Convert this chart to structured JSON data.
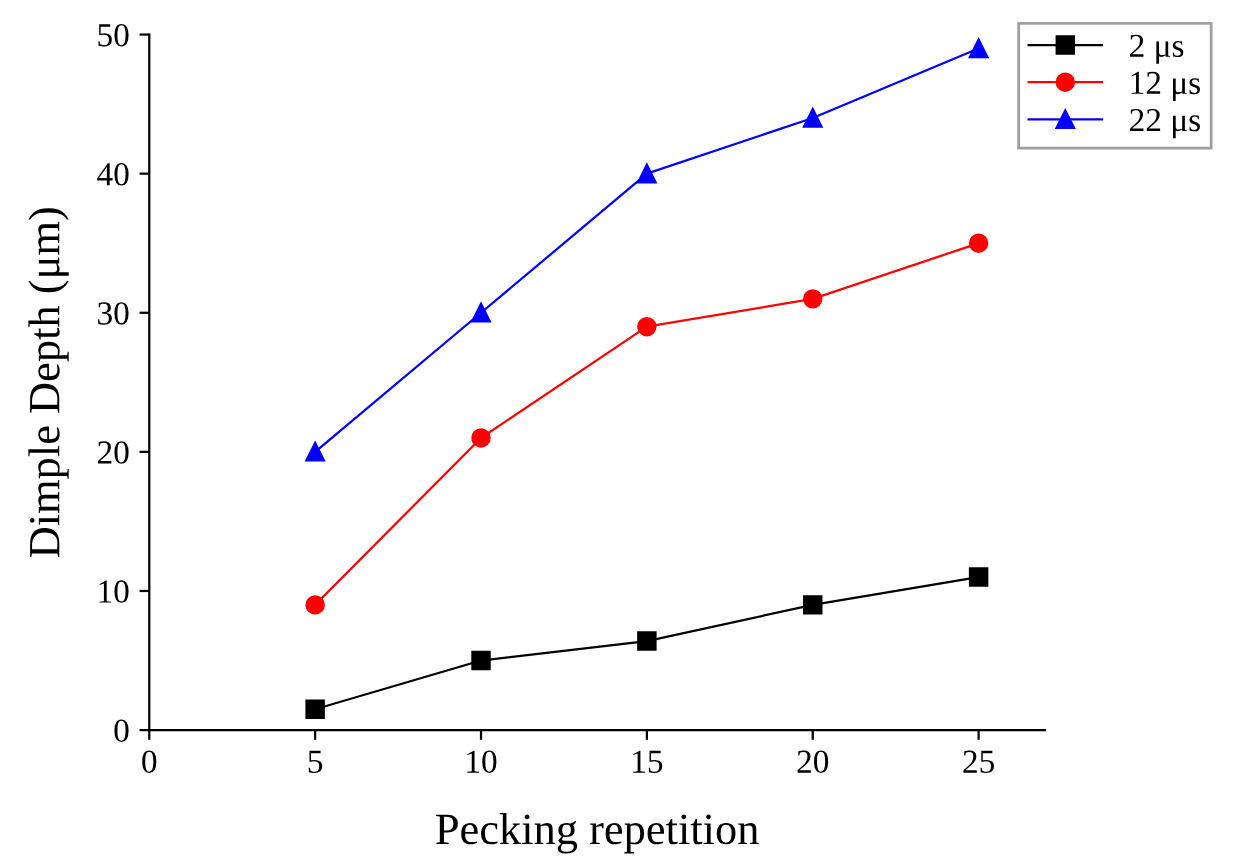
{
  "chart_data": {
    "type": "line",
    "xlabel": "Pecking repetition",
    "ylabel": "Dimple Depth (μm)",
    "x": [
      5,
      10,
      15,
      20,
      25
    ],
    "series": [
      {
        "name": "2 μs",
        "color": "#000000",
        "marker": "square",
        "values": [
          1.5,
          5,
          6.4,
          9,
          11
        ]
      },
      {
        "name": "12 μs",
        "color": "#ff0000",
        "marker": "circle",
        "values": [
          9,
          21,
          29,
          31,
          35
        ]
      },
      {
        "name": "22 μs",
        "color": "#0000ff",
        "marker": "triangle",
        "values": [
          20,
          30,
          40,
          44,
          49
        ]
      }
    ],
    "xlim": [
      0,
      27
    ],
    "xticks": [
      0,
      5,
      10,
      15,
      20,
      25
    ],
    "ylim": [
      0,
      50
    ],
    "yticks": [
      0,
      10,
      20,
      30,
      40,
      50
    ],
    "grid": false,
    "legend": "top right",
    "line_style": "solid"
  }
}
